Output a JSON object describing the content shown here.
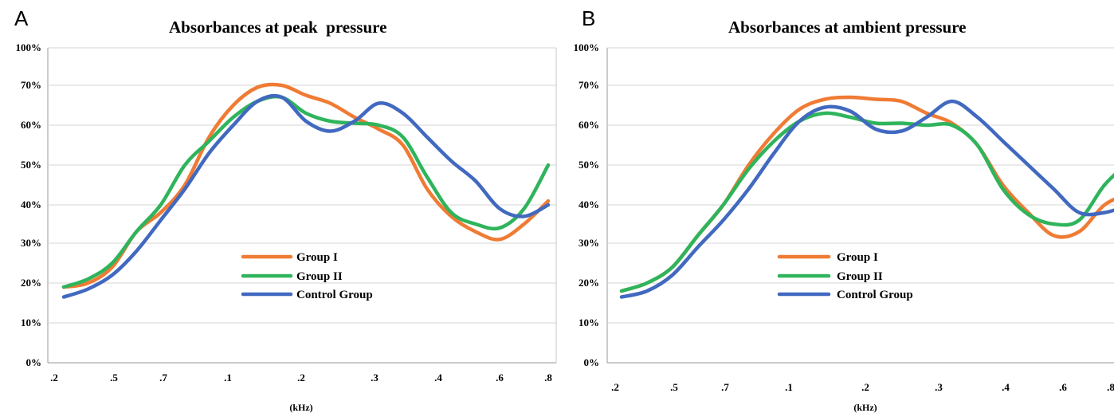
{
  "chart_data": [
    {
      "panel": "A",
      "type": "line",
      "title": "Absorbances at peak  pressure",
      "xlabel": "(kHz)",
      "ylabel": "",
      "x_ticks": [
        ".2",
        ".5",
        ".7",
        ".1",
        ".2",
        ".3",
        ".4",
        ".6",
        ".8"
      ],
      "y_ticks": [
        "0%",
        "10%",
        "20%",
        "30%",
        "40%",
        "50%",
        "60%",
        "70%",
        "100%"
      ],
      "grid": true,
      "legend": "center-inside",
      "series": [
        {
          "name": "Group I",
          "color": "#f07b34",
          "values": [
            19,
            20,
            24,
            33,
            38,
            45,
            57,
            65,
            69.5,
            70,
            67.5,
            65.5,
            62,
            59,
            55,
            44,
            37,
            33,
            31,
            35,
            41
          ]
        },
        {
          "name": "Group II",
          "color": "#2fb45c",
          "values": [
            19,
            21,
            25,
            33,
            40,
            50,
            56,
            62,
            66,
            67,
            63,
            61,
            60.5,
            60,
            57,
            47,
            38,
            35,
            34,
            39,
            50
          ]
        },
        {
          "name": "Control Group",
          "color": "#4169c0",
          "values": [
            16.5,
            18.5,
            22,
            28,
            36,
            44,
            53,
            60,
            66,
            67,
            61,
            58.5,
            61,
            65.5,
            63,
            57,
            51,
            46,
            39,
            37,
            40
          ]
        }
      ]
    },
    {
      "panel": "B",
      "type": "line",
      "title": "Absorbances at ambient pressure",
      "xlabel": "(kHz)",
      "ylabel": "",
      "x_ticks": [
        ".2",
        ".5",
        ".7",
        ".1",
        ".2",
        ".3",
        ".4",
        ".6",
        ".8"
      ],
      "y_ticks": [
        "0%",
        "10%",
        "20%",
        "30%",
        "40%",
        "50%",
        "60%",
        "70%",
        "100%"
      ],
      "grid": true,
      "legend": "center-inside",
      "series": [
        {
          "name": "Group I",
          "color": "#f07b34",
          "values": [
            18,
            20,
            24,
            32,
            40,
            50,
            58,
            64,
            66.5,
            67,
            66.5,
            66,
            63,
            60.5,
            55,
            45,
            38,
            32,
            33,
            40,
            43
          ]
        },
        {
          "name": "Group II",
          "color": "#2fb45c",
          "values": [
            18,
            20,
            24,
            32,
            40,
            49,
            56,
            61,
            63,
            62,
            60.5,
            60.5,
            60,
            60,
            55,
            44,
            37.5,
            35,
            36,
            45,
            51
          ]
        },
        {
          "name": "Control Group",
          "color": "#4169c0",
          "values": [
            16.5,
            18,
            22,
            29,
            36,
            44,
            53,
            61,
            64.5,
            63.5,
            59,
            58.5,
            62,
            66,
            62,
            56,
            50,
            44,
            38,
            38,
            40
          ]
        }
      ]
    }
  ]
}
